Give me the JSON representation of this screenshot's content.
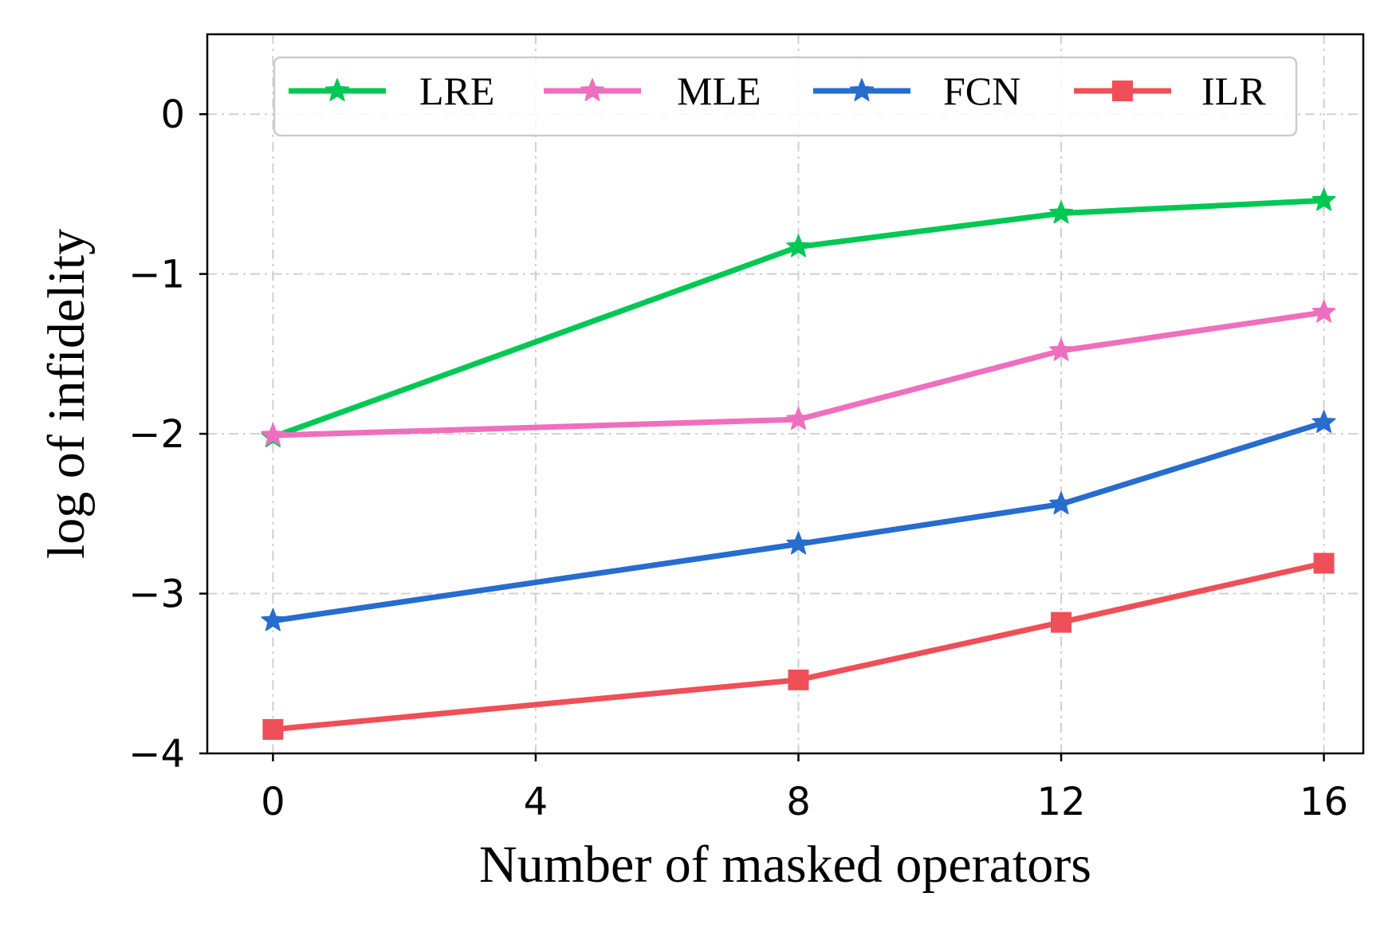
{
  "chart_data": {
    "type": "line",
    "title": "",
    "xlabel": "Number of masked operators",
    "ylabel": "log of infidelity",
    "xlim": [
      -1,
      16.6
    ],
    "ylim": [
      -4,
      0.5
    ],
    "x_ticks": [
      0,
      4,
      8,
      12,
      16
    ],
    "x_tick_labels": [
      "0",
      "4",
      "8",
      "12",
      "16"
    ],
    "y_ticks": [
      0,
      -1,
      -2,
      -3,
      -4
    ],
    "y_tick_labels": [
      "0",
      "−1",
      "−2",
      "−3",
      "−4"
    ],
    "grid": true,
    "legend_position": "top",
    "series": [
      {
        "name": "LRE",
        "color": "#00c853",
        "marker": "star",
        "x": [
          0,
          8,
          12,
          16
        ],
        "values": [
          -2.02,
          -0.83,
          -0.62,
          -0.54
        ]
      },
      {
        "name": "MLE",
        "color": "#ee6fbf",
        "marker": "star",
        "x": [
          0,
          8,
          12,
          16
        ],
        "values": [
          -2.01,
          -1.91,
          -1.48,
          -1.24
        ]
      },
      {
        "name": "FCN",
        "color": "#276ccf",
        "marker": "star",
        "x": [
          0,
          8,
          12,
          16
        ],
        "values": [
          -3.17,
          -2.69,
          -2.44,
          -1.93
        ]
      },
      {
        "name": "ILR",
        "color": "#ef4f58",
        "marker": "square",
        "x": [
          0,
          8,
          12,
          16
        ],
        "values": [
          -3.85,
          -3.54,
          -3.18,
          -2.81
        ]
      }
    ]
  }
}
